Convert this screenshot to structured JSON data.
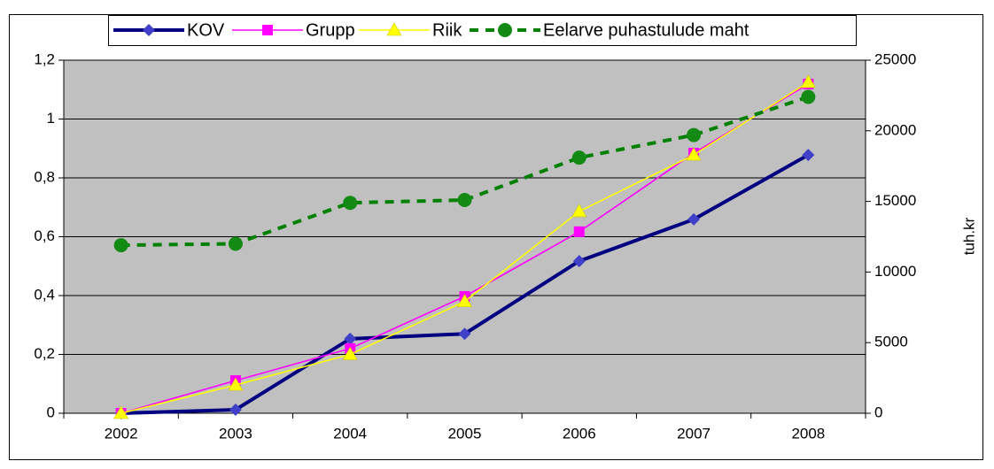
{
  "chart_data": {
    "type": "line",
    "categories": [
      "2002",
      "2003",
      "2004",
      "2005",
      "2006",
      "2007",
      "2008"
    ],
    "series": [
      {
        "name": "KOV",
        "color": "#000080",
        "marker": "diamond",
        "marker_color": "#4040c8",
        "values": [
          0,
          0.012,
          0.253,
          0.27,
          0.517,
          0.659,
          0.878
        ]
      },
      {
        "name": "Grupp",
        "color": "#ff00ff",
        "marker": "square",
        "marker_color": "#ff00ff",
        "values": [
          0,
          0.111,
          0.22,
          0.397,
          0.617,
          0.884,
          1.119
        ]
      },
      {
        "name": "Riik",
        "color": "#ffff00",
        "marker": "triangle",
        "marker_color": "#ffff00",
        "values": [
          0,
          0.096,
          0.2,
          0.38,
          0.686,
          0.878,
          1.125
        ]
      },
      {
        "name": "Eelarve puhastulude maht",
        "color": "#008000",
        "marker": "circle",
        "marker_color": "#138a13",
        "dashed": true,
        "axis": "y2",
        "values": [
          11900,
          12000,
          14900,
          15100,
          18100,
          19700,
          22400
        ]
      }
    ],
    "ylim": [
      0,
      1.2
    ],
    "yticks": [
      0,
      {
        "value": 0.2,
        "label": "0,2"
      },
      {
        "value": 0.4,
        "label": "0,4"
      },
      {
        "value": 0.6,
        "label": "0,6"
      },
      {
        "value": 0.8,
        "label": "0,8"
      },
      1,
      {
        "value": 1.2,
        "label": "1,2"
      }
    ],
    "y2lim": [
      0,
      25000
    ],
    "y2ticks": [
      0,
      5000,
      10000,
      15000,
      20000,
      25000
    ],
    "y2label": "tuh.kr",
    "grid": true,
    "plot_background": "#c0c0c0",
    "legend": "top"
  }
}
